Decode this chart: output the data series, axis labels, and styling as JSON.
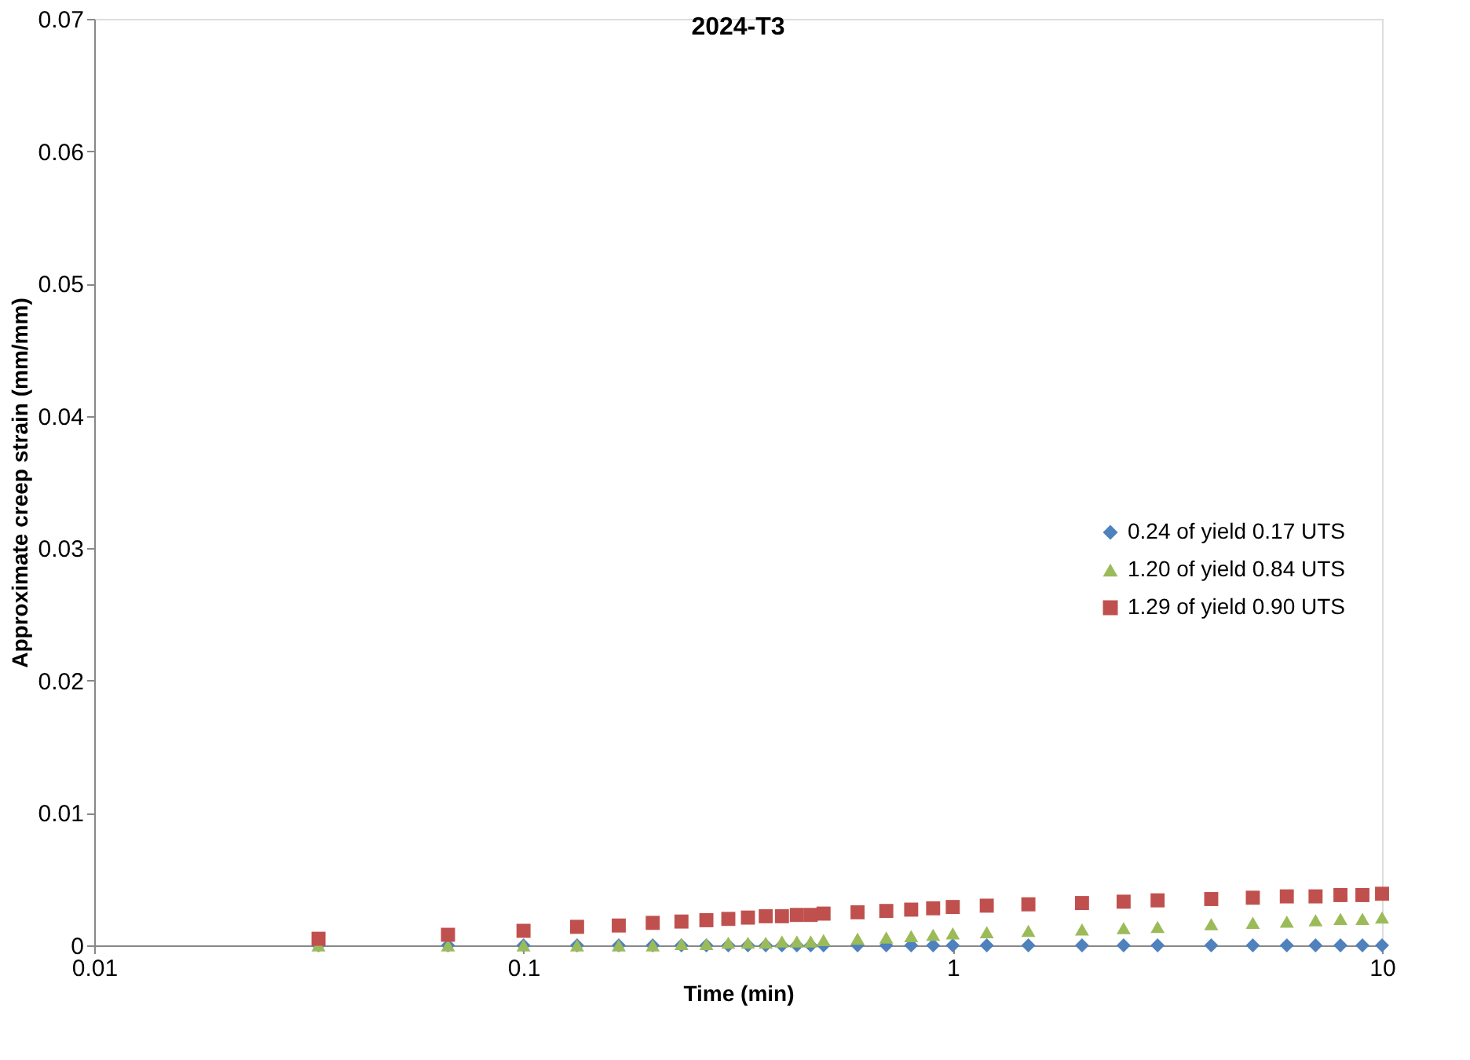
{
  "chart_data": {
    "type": "scatter",
    "title": "2024-T3",
    "xlabel": "Time (min)",
    "ylabel": "Approximate creep strain (mm/mm)",
    "log": "x",
    "xlim": [
      0.01,
      10
    ],
    "xticks": [
      0.01,
      0.1,
      1,
      10
    ],
    "ylim": [
      0,
      0.07
    ],
    "yticks": [
      0,
      0.01,
      0.02,
      0.03,
      0.04,
      0.05,
      0.06,
      0.07
    ],
    "grid": false,
    "legend": "right",
    "x": [
      0.0333,
      0.0667,
      0.1,
      0.1333,
      0.1667,
      0.2,
      0.2333,
      0.2667,
      0.3,
      0.3333,
      0.3667,
      0.4,
      0.4333,
      0.4667,
      0.5,
      0.6,
      0.7,
      0.8,
      0.9,
      1,
      1.2,
      1.5,
      2,
      2.5,
      3,
      4,
      5,
      6,
      7,
      8,
      9,
      10
    ],
    "series": [
      {
        "name": "0.24 of yield   0.17 UTS",
        "color": "#4f81bd",
        "marker": "diamond",
        "values": [
          0,
          0,
          0,
          0,
          0,
          0,
          0,
          0,
          0,
          0,
          0,
          0,
          0,
          0,
          0,
          0,
          0,
          0,
          0,
          0,
          0,
          0,
          0,
          0,
          0,
          0,
          0,
          0,
          0,
          0,
          0,
          0
        ]
      },
      {
        "name": "1.20 of yield   0.84 UTS",
        "color": "#9bbb59",
        "marker": "triangle",
        "values": [
          0,
          0,
          0,
          0,
          0,
          0,
          0.0001,
          0.0001,
          0.0002,
          0.0002,
          0.0002,
          0.0003,
          0.0003,
          0.0003,
          0.0004,
          0.0005,
          0.0006,
          0.0007,
          0.0008,
          0.0009,
          0.001,
          0.0011,
          0.0012,
          0.0013,
          0.0014,
          0.0016,
          0.0017,
          0.0018,
          0.0019,
          0.002,
          0.002,
          0.0021
        ]
      },
      {
        "name": "1.29 of yield   0.90 UTS",
        "color": "#c0504d",
        "marker": "square",
        "values": [
          0.0005,
          0.0008,
          0.0011,
          0.0014,
          0.0015,
          0.0017,
          0.0018,
          0.0019,
          0.002,
          0.0021,
          0.0022,
          0.0022,
          0.0023,
          0.0023,
          0.0024,
          0.0025,
          0.0026,
          0.0027,
          0.0028,
          0.0029,
          0.003,
          0.0031,
          0.0032,
          0.0033,
          0.0034,
          0.0035,
          0.0036,
          0.0037,
          0.0037,
          0.0038,
          0.0038,
          0.0039
        ]
      }
    ]
  }
}
